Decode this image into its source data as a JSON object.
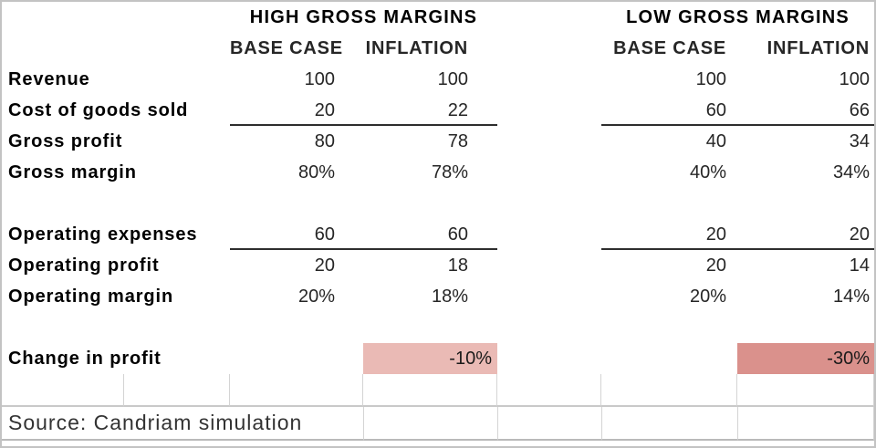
{
  "table": {
    "group_headers": [
      "HIGH GROSS MARGINS",
      "LOW GROSS MARGINS"
    ],
    "col_headers": [
      "BASE CASE",
      "INFLATION",
      "BASE CASE",
      "INFLATION"
    ],
    "rows": [
      {
        "label": "Revenue",
        "values": [
          "100",
          "100",
          "100",
          "100"
        ]
      },
      {
        "label": "Cost of goods sold",
        "values": [
          "20",
          "22",
          "60",
          "66"
        ]
      },
      {
        "label": "Gross profit",
        "values": [
          "80",
          "78",
          "40",
          "34"
        ]
      },
      {
        "label": "Gross margin",
        "values": [
          "80%",
          "78%",
          "40%",
          "34%"
        ]
      },
      {
        "label": "Operating expenses",
        "values": [
          "60",
          "60",
          "20",
          "20"
        ]
      },
      {
        "label": "Operating profit",
        "values": [
          "20",
          "18",
          "20",
          "14"
        ]
      },
      {
        "label": "Operating margin",
        "values": [
          "20%",
          "18%",
          "20%",
          "14%"
        ]
      },
      {
        "label": "Change in profit",
        "values": [
          "",
          "-10%",
          "",
          "-30%"
        ]
      }
    ],
    "source": "Source: Candriam simulation",
    "colors": {
      "highlight_light": "#eabab5",
      "highlight_dark": "#da918c",
      "gridline": "#d4d4d4",
      "sum_line": "#2e2e2e"
    }
  }
}
